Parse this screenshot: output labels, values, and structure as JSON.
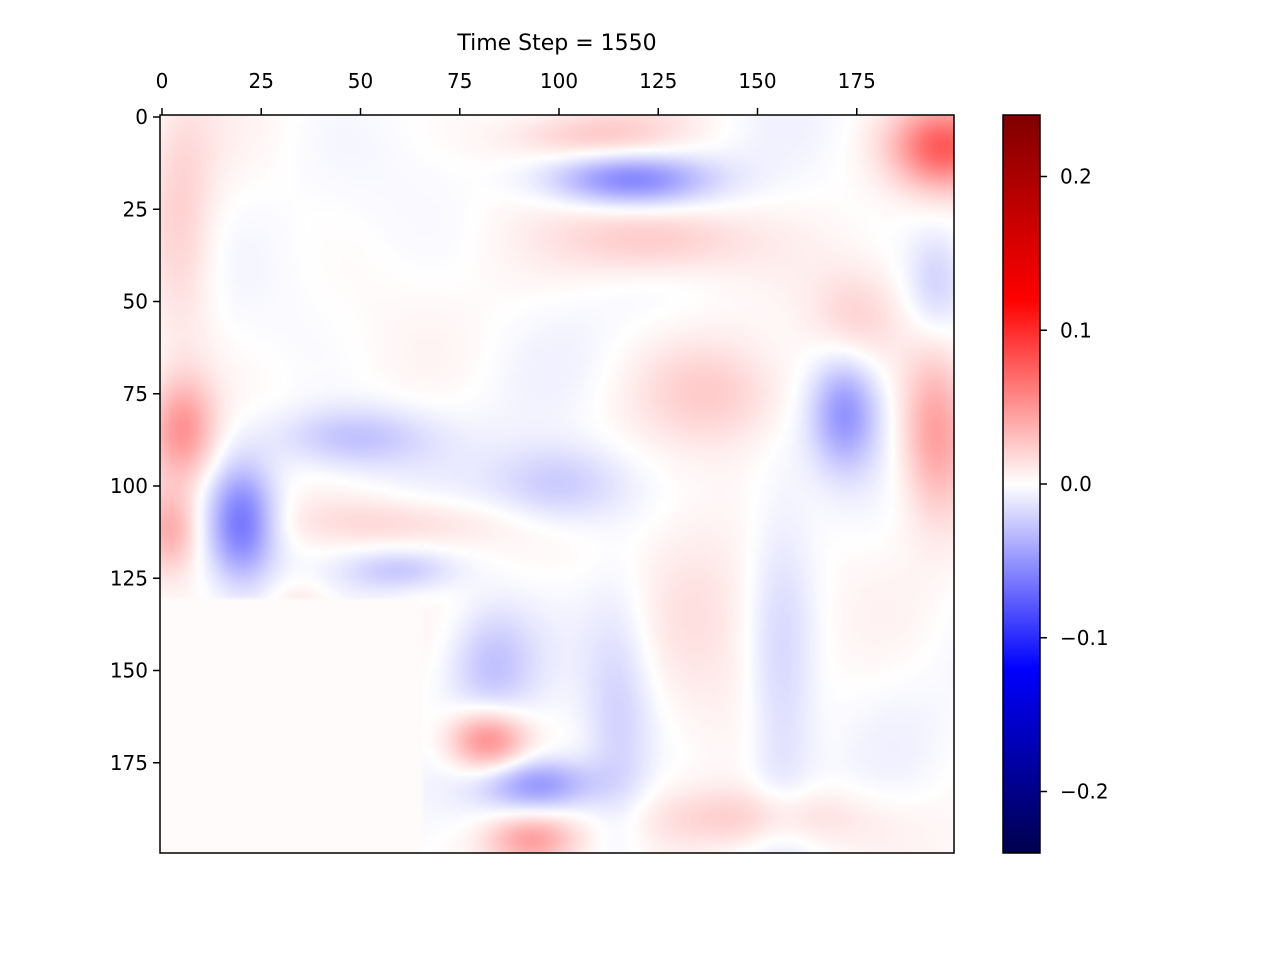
{
  "chart_data": {
    "type": "heatmap",
    "title": "Time Step = 1550",
    "xlabel": "",
    "ylabel": "",
    "x_ticks": [
      0,
      25,
      50,
      75,
      100,
      125,
      150,
      175
    ],
    "y_ticks": [
      0,
      25,
      50,
      75,
      100,
      125,
      150,
      175
    ],
    "xlim": [
      0,
      200
    ],
    "ylim": [
      200,
      0
    ],
    "x_axis_position": "top",
    "grid": false,
    "colormap": "seismic",
    "colorbar": {
      "range": [
        -0.24,
        0.24
      ],
      "ticks": [
        0.2,
        0.1,
        0.0,
        -0.1,
        -0.2
      ],
      "tick_labels": [
        "0.2",
        "0.1",
        "0.0",
        "−0.1",
        "−0.2"
      ],
      "colors": [
        "#00004d",
        "#0000ff",
        "#ffffff",
        "#ff0000",
        "#800000"
      ]
    },
    "masked_region": {
      "x": [
        0,
        66
      ],
      "y": [
        131,
        200
      ],
      "value": 0.002
    },
    "features": [
      {
        "x": 20,
        "y": 110,
        "value": -0.065,
        "sx": 6,
        "sy": 11
      },
      {
        "x": 118,
        "y": 17,
        "value": -0.06,
        "sx": 14,
        "sy": 5
      },
      {
        "x": 172,
        "y": 80,
        "value": -0.05,
        "sx": 6,
        "sy": 11
      },
      {
        "x": 95,
        "y": 181,
        "value": -0.05,
        "sx": 10,
        "sy": 5
      },
      {
        "x": 48,
        "y": 87,
        "value": -0.03,
        "sx": 14,
        "sy": 6
      },
      {
        "x": 100,
        "y": 100,
        "value": -0.03,
        "sx": 12,
        "sy": 8
      },
      {
        "x": 83,
        "y": 148,
        "value": -0.03,
        "sx": 8,
        "sy": 12
      },
      {
        "x": 60,
        "y": 123,
        "value": -0.025,
        "sx": 10,
        "sy": 4
      },
      {
        "x": 156,
        "y": 155,
        "value": -0.02,
        "sx": 6,
        "sy": 35
      },
      {
        "x": 115,
        "y": 165,
        "value": -0.02,
        "sx": 6,
        "sy": 25
      },
      {
        "x": 195,
        "y": 45,
        "value": -0.02,
        "sx": 5,
        "sy": 10
      },
      {
        "x": 197,
        "y": 8,
        "value": 0.075,
        "sx": 9,
        "sy": 8
      },
      {
        "x": 82,
        "y": 169,
        "value": 0.06,
        "sx": 7,
        "sy": 6
      },
      {
        "x": 5,
        "y": 85,
        "value": 0.05,
        "sx": 6,
        "sy": 10
      },
      {
        "x": 195,
        "y": 85,
        "value": 0.045,
        "sx": 6,
        "sy": 16
      },
      {
        "x": 93,
        "y": 196,
        "value": 0.045,
        "sx": 8,
        "sy": 5
      },
      {
        "x": 2,
        "y": 112,
        "value": 0.035,
        "sx": 5,
        "sy": 8
      },
      {
        "x": 125,
        "y": 33,
        "value": 0.03,
        "sx": 16,
        "sy": 7
      },
      {
        "x": 150,
        "y": 190,
        "value": 0.025,
        "sx": 20,
        "sy": 6
      },
      {
        "x": 60,
        "y": 110,
        "value": 0.02,
        "sx": 20,
        "sy": 5
      },
      {
        "x": 108,
        "y": 5,
        "value": 0.025,
        "sx": 15,
        "sy": 5
      },
      {
        "x": 175,
        "y": 55,
        "value": 0.02,
        "sx": 8,
        "sy": 10
      },
      {
        "x": 140,
        "y": 75,
        "value": 0.02,
        "sx": 14,
        "sy": 10
      },
      {
        "x": 5,
        "y": 30,
        "value": 0.02,
        "sx": 6,
        "sy": 25
      },
      {
        "x": 35,
        "y": 135,
        "value": 0.02,
        "sx": 6,
        "sy": 6
      },
      {
        "x": 135,
        "y": 130,
        "value": 0.015,
        "sx": 12,
        "sy": 20
      }
    ]
  }
}
